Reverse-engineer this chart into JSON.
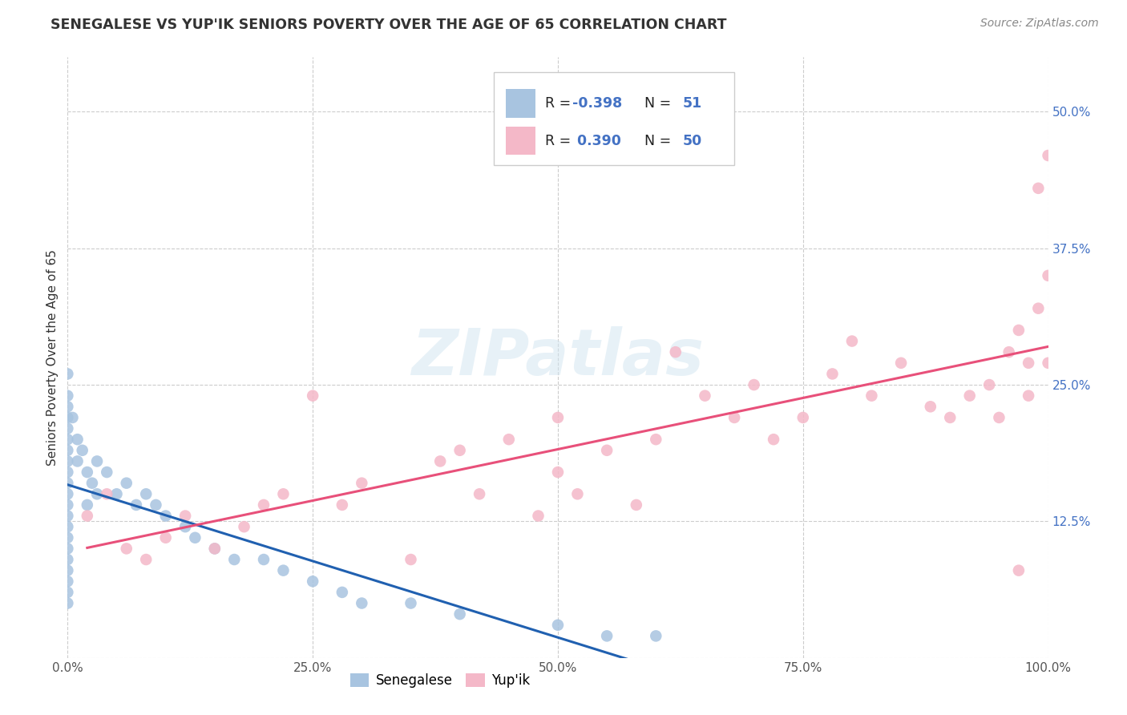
{
  "title": "SENEGALESE VS YUP'IK SENIORS POVERTY OVER THE AGE OF 65 CORRELATION CHART",
  "source": "Source: ZipAtlas.com",
  "ylabel": "Seniors Poverty Over the Age of 65",
  "xlim": [
    0,
    1.0
  ],
  "ylim": [
    0,
    0.55
  ],
  "xticks": [
    0.0,
    0.25,
    0.5,
    0.75,
    1.0
  ],
  "xticklabels": [
    "0.0%",
    "25.0%",
    "50.0%",
    "75.0%",
    "100.0%"
  ],
  "yticks": [
    0.0,
    0.125,
    0.25,
    0.375,
    0.5
  ],
  "yticklabels": [
    "",
    "12.5%",
    "25.0%",
    "37.5%",
    "50.0%"
  ],
  "color_senegalese": "#a8c4e0",
  "color_yupik": "#f4b8c8",
  "color_line_senegalese": "#2060b0",
  "color_line_yupik": "#e8507a",
  "background_color": "#ffffff",
  "senegalese_x": [
    0.0,
    0.0,
    0.0,
    0.0,
    0.0,
    0.0,
    0.0,
    0.0,
    0.0,
    0.0,
    0.0,
    0.0,
    0.0,
    0.0,
    0.0,
    0.0,
    0.0,
    0.0,
    0.0,
    0.0,
    0.0,
    0.005,
    0.01,
    0.01,
    0.015,
    0.02,
    0.02,
    0.025,
    0.03,
    0.03,
    0.04,
    0.05,
    0.06,
    0.07,
    0.08,
    0.09,
    0.1,
    0.12,
    0.13,
    0.15,
    0.17,
    0.2,
    0.22,
    0.25,
    0.28,
    0.3,
    0.35,
    0.4,
    0.5,
    0.55,
    0.6
  ],
  "senegalese_y": [
    0.26,
    0.24,
    0.23,
    0.22,
    0.21,
    0.2,
    0.19,
    0.18,
    0.17,
    0.16,
    0.15,
    0.14,
    0.13,
    0.12,
    0.11,
    0.1,
    0.09,
    0.08,
    0.07,
    0.06,
    0.05,
    0.22,
    0.2,
    0.18,
    0.19,
    0.17,
    0.14,
    0.16,
    0.18,
    0.15,
    0.17,
    0.15,
    0.16,
    0.14,
    0.15,
    0.14,
    0.13,
    0.12,
    0.11,
    0.1,
    0.09,
    0.09,
    0.08,
    0.07,
    0.06,
    0.05,
    0.05,
    0.04,
    0.03,
    0.02,
    0.02
  ],
  "yupik_x": [
    0.02,
    0.04,
    0.06,
    0.08,
    0.1,
    0.12,
    0.15,
    0.18,
    0.2,
    0.22,
    0.25,
    0.28,
    0.3,
    0.35,
    0.38,
    0.4,
    0.42,
    0.45,
    0.48,
    0.5,
    0.52,
    0.55,
    0.58,
    0.6,
    0.62,
    0.65,
    0.68,
    0.7,
    0.72,
    0.75,
    0.78,
    0.8,
    0.82,
    0.85,
    0.88,
    0.9,
    0.92,
    0.94,
    0.95,
    0.96,
    0.97,
    0.97,
    0.98,
    0.98,
    0.99,
    0.99,
    1.0,
    1.0,
    1.0,
    0.5
  ],
  "yupik_y": [
    0.13,
    0.15,
    0.1,
    0.09,
    0.11,
    0.13,
    0.1,
    0.12,
    0.14,
    0.15,
    0.24,
    0.14,
    0.16,
    0.09,
    0.18,
    0.19,
    0.15,
    0.2,
    0.13,
    0.17,
    0.15,
    0.19,
    0.14,
    0.2,
    0.28,
    0.24,
    0.22,
    0.25,
    0.2,
    0.22,
    0.26,
    0.29,
    0.24,
    0.27,
    0.23,
    0.22,
    0.24,
    0.25,
    0.22,
    0.28,
    0.3,
    0.08,
    0.24,
    0.27,
    0.43,
    0.32,
    0.46,
    0.35,
    0.27,
    0.22
  ]
}
